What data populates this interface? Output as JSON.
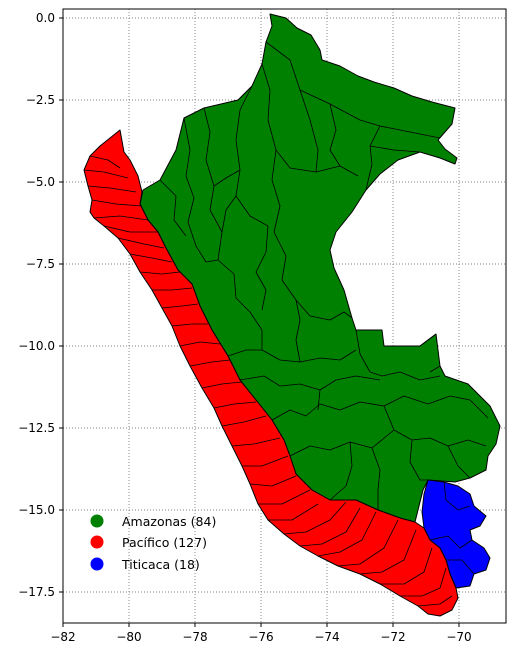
{
  "map": {
    "xticks": [
      "−82",
      "−80",
      "−78",
      "−76",
      "−74",
      "−72",
      "−70"
    ],
    "yticks": [
      "0.0",
      "−2.5",
      "−5.0",
      "−7.5",
      "−10.0",
      "−12.5",
      "−15.0",
      "−17.5"
    ],
    "grid": true,
    "grid_style": "dotted",
    "colors": {
      "amazonas": "#008000",
      "pacifico": "#ff0000",
      "titicaca": "#0000ff"
    },
    "legend": {
      "placement": "lower-left",
      "items": [
        {
          "label": "Amazonas (84)",
          "color": "#008000"
        },
        {
          "label": "Pacífico (127)",
          "color": "#ff0000"
        },
        {
          "label": "Titicaca (18)",
          "color": "#0000ff"
        }
      ]
    }
  }
}
